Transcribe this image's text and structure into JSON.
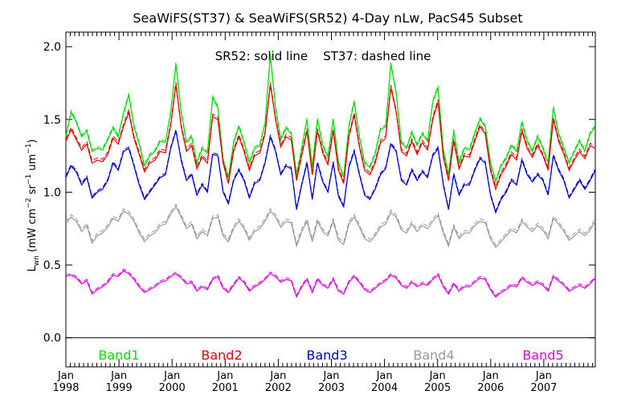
{
  "chart_data": {
    "type": "line",
    "title": "SeaWiFS(ST37) & SeaWiFS(SR52) 4-Day nLw, PacS45 Subset",
    "annotation": "SR52: solid line    ST37: dashed line",
    "ylabel": "L_wn (mW cm^-2 sr^-1 um^-1)",
    "ylabel_parts": {
      "L": "L",
      "sub": "wn",
      "units_open": "(mW cm",
      "exp1": "−2",
      "sr": " sr",
      "exp2": "−1",
      "um": " um",
      "exp3": "−1",
      "close": ")"
    },
    "ylim": [
      -0.2,
      2.1
    ],
    "xlim": [
      1998.0,
      2007.97
    ],
    "yticks": [
      0.0,
      0.5,
      1.0,
      1.5,
      2.0
    ],
    "ytick_labels": [
      "0.0",
      "0.5",
      "1.0",
      "1.5",
      "2.0"
    ],
    "xticks": [
      {
        "month": "Jan",
        "year": "1998",
        "value": 1998.0
      },
      {
        "month": "Jan",
        "year": "1999",
        "value": 1999.0
      },
      {
        "month": "Jan",
        "year": "2000",
        "value": 2000.0
      },
      {
        "month": "Jan",
        "year": "2001",
        "value": 2001.0
      },
      {
        "month": "Jan",
        "year": "2002",
        "value": 2002.0
      },
      {
        "month": "Jan",
        "year": "2003",
        "value": 2003.0
      },
      {
        "month": "Jan",
        "year": "2004",
        "value": 2004.0
      },
      {
        "month": "Jan",
        "year": "2005",
        "value": 2005.0
      },
      {
        "month": "Jan",
        "year": "2006",
        "value": 2006.0
      },
      {
        "month": "Jan",
        "year": "2007",
        "value": 2007.0
      }
    ],
    "zero_line": 0.0,
    "legend_placement": "bottom inside plot",
    "series": [
      {
        "name": "Band1",
        "color": "#00dd00",
        "values": [
          1.38,
          1.55,
          1.48,
          1.38,
          1.42,
          1.28,
          1.3,
          1.29,
          1.36,
          1.44,
          1.38,
          1.54,
          1.67,
          1.45,
          1.33,
          1.18,
          1.25,
          1.28,
          1.35,
          1.34,
          1.55,
          1.88,
          1.55,
          1.34,
          1.38,
          1.2,
          1.3,
          1.27,
          1.65,
          1.58,
          1.22,
          1.1,
          1.34,
          1.45,
          1.34,
          1.2,
          1.3,
          1.32,
          1.47,
          1.94,
          1.58,
          1.36,
          1.44,
          1.4,
          1.12,
          1.3,
          1.5,
          1.17,
          1.5,
          1.32,
          1.24,
          1.5,
          1.2,
          1.1,
          1.45,
          1.62,
          1.38,
          1.2,
          1.17,
          1.26,
          1.43,
          1.45,
          1.88,
          1.68,
          1.34,
          1.3,
          1.41,
          1.32,
          1.4,
          1.35,
          1.62,
          1.72,
          1.29,
          1.12,
          1.42,
          1.2,
          1.3,
          1.29,
          1.4,
          1.5,
          1.45,
          1.2,
          1.07,
          1.18,
          1.23,
          1.32,
          1.28,
          1.48,
          1.35,
          1.28,
          1.38,
          1.3,
          1.2,
          1.58,
          1.4,
          1.3,
          1.2,
          1.28,
          1.35,
          1.28,
          1.4,
          1.45
        ]
      },
      {
        "name": "Band2",
        "color": "#dd0000",
        "values": [
          1.35,
          1.43,
          1.36,
          1.29,
          1.33,
          1.2,
          1.22,
          1.21,
          1.26,
          1.37,
          1.33,
          1.45,
          1.55,
          1.37,
          1.26,
          1.14,
          1.2,
          1.22,
          1.28,
          1.27,
          1.46,
          1.74,
          1.45,
          1.28,
          1.32,
          1.16,
          1.24,
          1.2,
          1.52,
          1.5,
          1.2,
          1.06,
          1.28,
          1.38,
          1.28,
          1.15,
          1.25,
          1.27,
          1.4,
          1.74,
          1.5,
          1.31,
          1.38,
          1.36,
          1.08,
          1.25,
          1.42,
          1.12,
          1.42,
          1.27,
          1.19,
          1.42,
          1.15,
          1.06,
          1.38,
          1.53,
          1.31,
          1.15,
          1.12,
          1.2,
          1.34,
          1.37,
          1.72,
          1.55,
          1.28,
          1.25,
          1.35,
          1.26,
          1.34,
          1.29,
          1.5,
          1.62,
          1.24,
          1.08,
          1.35,
          1.16,
          1.25,
          1.24,
          1.35,
          1.45,
          1.4,
          1.15,
          1.02,
          1.12,
          1.18,
          1.26,
          1.22,
          1.42,
          1.3,
          1.24,
          1.32,
          1.25,
          1.15,
          1.5,
          1.35,
          1.26,
          1.15,
          1.22,
          1.28,
          1.23,
          1.32,
          1.3
        ]
      },
      {
        "name": "Band3",
        "color": "#0000cc",
        "values": [
          1.1,
          1.18,
          1.14,
          1.05,
          1.1,
          0.96,
          1.0,
          1.02,
          1.08,
          1.2,
          1.15,
          1.28,
          1.3,
          1.18,
          1.05,
          0.95,
          1.0,
          1.05,
          1.1,
          1.12,
          1.3,
          1.42,
          1.22,
          1.08,
          1.12,
          0.98,
          1.05,
          1.0,
          1.26,
          1.25,
          1.0,
          0.92,
          1.08,
          1.15,
          1.08,
          0.96,
          1.06,
          1.08,
          1.2,
          1.38,
          1.28,
          1.12,
          1.18,
          1.16,
          0.88,
          1.05,
          1.2,
          0.95,
          1.2,
          1.07,
          1.0,
          1.2,
          0.97,
          0.9,
          1.17,
          1.28,
          1.12,
          0.98,
          0.95,
          1.02,
          1.12,
          1.16,
          1.33,
          1.28,
          1.08,
          1.05,
          1.15,
          1.08,
          1.14,
          1.1,
          1.25,
          1.3,
          1.05,
          0.88,
          1.12,
          0.98,
          1.05,
          1.05,
          1.15,
          1.23,
          1.2,
          0.98,
          0.86,
          0.95,
          1.0,
          1.08,
          1.05,
          1.22,
          1.12,
          1.07,
          1.12,
          1.08,
          0.98,
          1.25,
          1.15,
          1.08,
          0.96,
          1.02,
          1.08,
          1.02,
          1.08,
          1.15
        ]
      },
      {
        "name": "Band4",
        "color": "#999999",
        "values": [
          0.78,
          0.83,
          0.8,
          0.73,
          0.77,
          0.65,
          0.7,
          0.72,
          0.76,
          0.82,
          0.8,
          0.87,
          0.85,
          0.8,
          0.72,
          0.66,
          0.7,
          0.72,
          0.77,
          0.78,
          0.85,
          0.9,
          0.83,
          0.75,
          0.78,
          0.68,
          0.73,
          0.7,
          0.82,
          0.83,
          0.7,
          0.66,
          0.75,
          0.8,
          0.75,
          0.67,
          0.73,
          0.75,
          0.8,
          0.87,
          0.83,
          0.76,
          0.8,
          0.79,
          0.63,
          0.73,
          0.8,
          0.66,
          0.8,
          0.73,
          0.7,
          0.8,
          0.67,
          0.64,
          0.78,
          0.83,
          0.76,
          0.68,
          0.66,
          0.7,
          0.76,
          0.78,
          0.86,
          0.83,
          0.74,
          0.72,
          0.78,
          0.73,
          0.77,
          0.75,
          0.8,
          0.84,
          0.72,
          0.63,
          0.76,
          0.68,
          0.72,
          0.72,
          0.77,
          0.8,
          0.79,
          0.68,
          0.62,
          0.66,
          0.7,
          0.74,
          0.72,
          0.8,
          0.76,
          0.73,
          0.77,
          0.74,
          0.68,
          0.82,
          0.78,
          0.73,
          0.67,
          0.7,
          0.73,
          0.7,
          0.74,
          0.8
        ]
      },
      {
        "name": "Band5",
        "color": "#dd00dd",
        "values": [
          0.42,
          0.43,
          0.41,
          0.37,
          0.39,
          0.3,
          0.33,
          0.35,
          0.38,
          0.43,
          0.42,
          0.46,
          0.44,
          0.4,
          0.35,
          0.31,
          0.33,
          0.35,
          0.38,
          0.39,
          0.42,
          0.44,
          0.41,
          0.37,
          0.38,
          0.32,
          0.35,
          0.33,
          0.4,
          0.42,
          0.34,
          0.31,
          0.36,
          0.41,
          0.38,
          0.32,
          0.35,
          0.37,
          0.4,
          0.44,
          0.42,
          0.38,
          0.4,
          0.39,
          0.28,
          0.35,
          0.4,
          0.31,
          0.4,
          0.36,
          0.34,
          0.4,
          0.32,
          0.3,
          0.38,
          0.42,
          0.38,
          0.33,
          0.31,
          0.34,
          0.37,
          0.39,
          0.43,
          0.41,
          0.36,
          0.34,
          0.38,
          0.35,
          0.37,
          0.36,
          0.4,
          0.43,
          0.35,
          0.3,
          0.37,
          0.32,
          0.35,
          0.35,
          0.38,
          0.41,
          0.4,
          0.33,
          0.28,
          0.31,
          0.33,
          0.36,
          0.35,
          0.41,
          0.38,
          0.36,
          0.38,
          0.36,
          0.32,
          0.42,
          0.39,
          0.36,
          0.32,
          0.34,
          0.36,
          0.34,
          0.37,
          0.41
        ]
      }
    ]
  }
}
